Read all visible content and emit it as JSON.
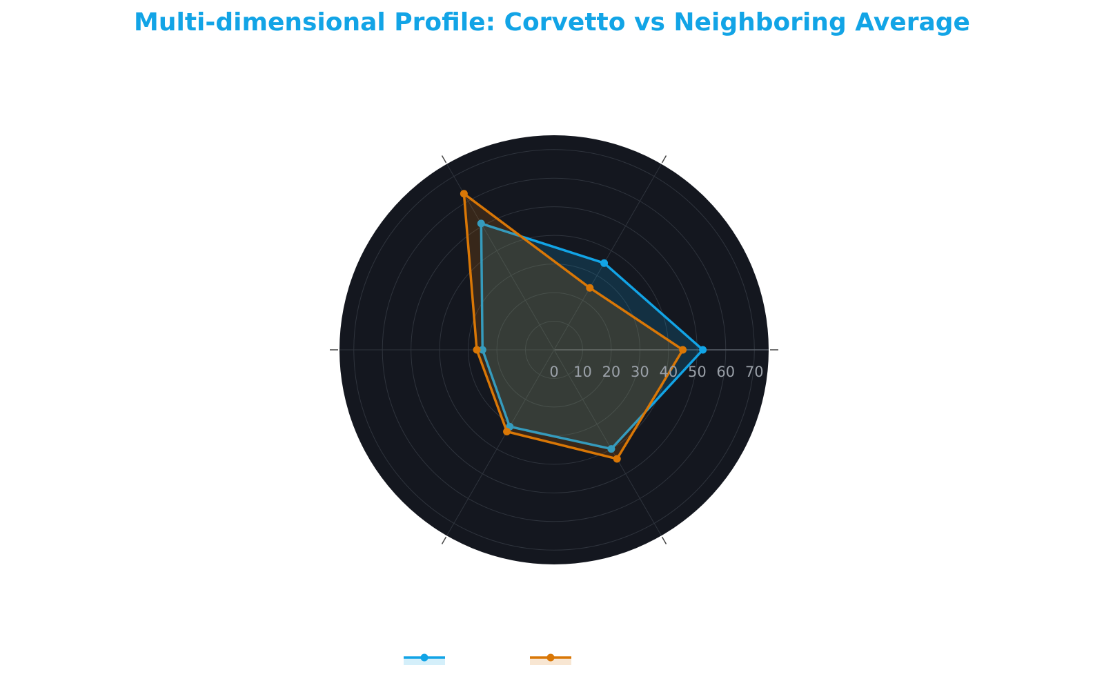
{
  "title": "Multi-dimensional Profile: Corvetto vs Neighboring Average",
  "colors": {
    "background": "#ffffff",
    "polar_background": "#14171f",
    "grid": "#2f343d",
    "axis_line": "#5a606a",
    "tick_text": "#9aa0a8",
    "title": "#12a4e6"
  },
  "chart_data": {
    "type": "radar",
    "axes_count": 6,
    "radial_range": [
      0,
      75
    ],
    "radial_ticks": [
      0,
      10,
      20,
      30,
      40,
      50,
      60,
      70
    ],
    "grid": true,
    "angular_labels": [
      "",
      "",
      "",
      "",
      "",
      ""
    ],
    "legend_position": "bottom",
    "series": [
      {
        "color": "#12a4e6",
        "values": [
          52,
          35,
          51,
          25,
          31,
          40
        ]
      },
      {
        "color": "#d97706",
        "values": [
          45,
          25,
          63,
          27,
          33,
          44
        ]
      }
    ]
  }
}
